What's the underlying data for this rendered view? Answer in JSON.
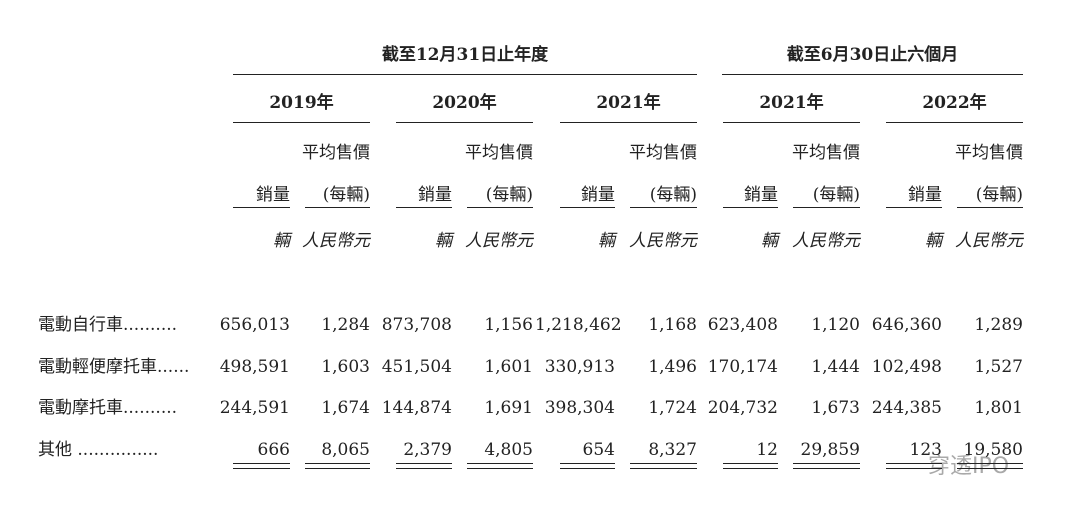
{
  "table": {
    "groups": [
      "截至12月31日止年度",
      "截至6月30日止六個月"
    ],
    "years": [
      "2019年",
      "2020年",
      "2021年",
      "2021年",
      "2022年"
    ],
    "sub_headers": {
      "volume": "銷量",
      "price_line1": "平均售價",
      "price_line2": "(每輛)"
    },
    "units": {
      "volume": "輛",
      "price": "人民幣元"
    },
    "rows": [
      {
        "label": "電動自行車..........",
        "cells": [
          "656,013",
          "1,284",
          "873,708",
          "1,156",
          "1,218,462",
          "1,168",
          "623,408",
          "1,120",
          "646,360",
          "1,289"
        ]
      },
      {
        "label": "電動輕便摩托車......",
        "cells": [
          "498,591",
          "1,603",
          "451,504",
          "1,601",
          "330,913",
          "1,496",
          "170,174",
          "1,444",
          "102,498",
          "1,527"
        ]
      },
      {
        "label": "電動摩托車..........",
        "cells": [
          "244,591",
          "1,674",
          "144,874",
          "1,691",
          "398,304",
          "1,724",
          "204,732",
          "1,673",
          "244,385",
          "1,801"
        ]
      },
      {
        "label": "其他 ...............",
        "cells": [
          "666",
          "8,065",
          "2,379",
          "4,805",
          "654",
          "8,327",
          "12",
          "29,859",
          "123",
          "19,580"
        ]
      }
    ]
  },
  "watermark": "穿透IPO"
}
